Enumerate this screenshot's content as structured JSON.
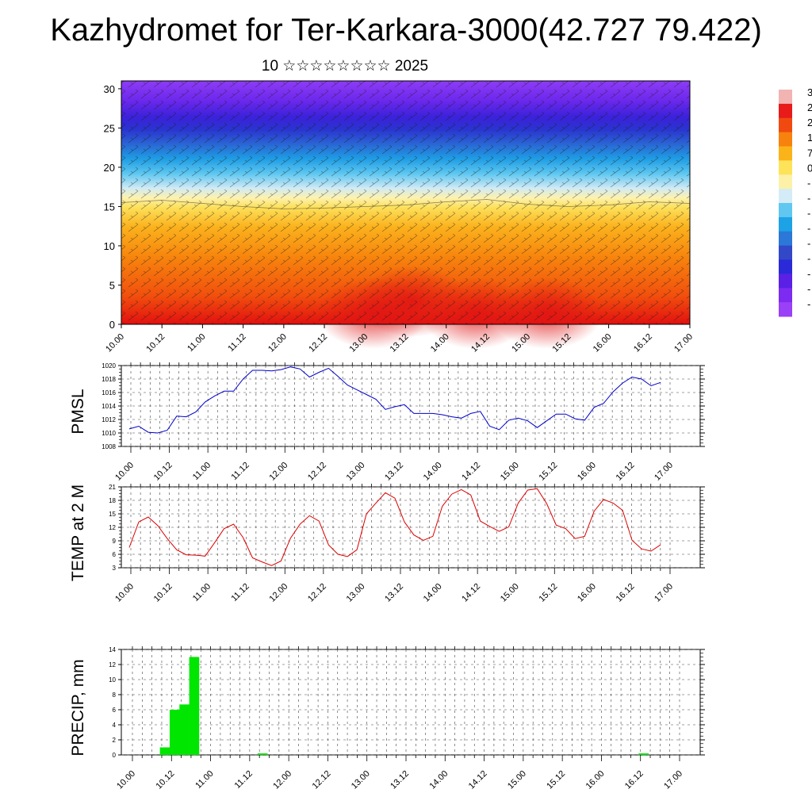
{
  "title": "Kazhydromet for Ter-Karkara-3000(42.727 79.422)",
  "subtitle": "10 ☆☆☆☆☆☆☆☆ 2025",
  "chart_data": [
    {
      "type": "heatmap",
      "name": "vertical-section",
      "x_ticks": [
        "10.00",
        "10.12",
        "11.00",
        "11.12",
        "12.00",
        "12.12",
        "13.00",
        "13.12",
        "14.00",
        "14.12",
        "15.00",
        "15.12",
        "16.00",
        "16.12",
        "17.00"
      ],
      "y_ticks": [
        0,
        5,
        10,
        15,
        20,
        25,
        30
      ],
      "ylim": [
        0,
        31
      ],
      "colorbar_labels": [
        "3",
        "2",
        "2",
        "1",
        "7",
        "0",
        "-",
        "-",
        "-",
        "-",
        "-",
        "-",
        "-",
        "-",
        "-"
      ],
      "colorbar_colors": [
        "#f2b3b3",
        "#e81a1a",
        "#f04a10",
        "#f7820d",
        "#fbb31a",
        "#fde35a",
        "#fdf1a8",
        "#d4ecf7",
        "#60c8f0",
        "#1da2e6",
        "#2b78d8",
        "#3248c8",
        "#2a2ad8",
        "#5a20e6",
        "#7d2bf0",
        "#9a40f7"
      ],
      "surface_profile_km": [
        15.5,
        15.8,
        15.4,
        15.0,
        14.7,
        14.8,
        15.0,
        15.2,
        15.6,
        15.9,
        15.3,
        15.0,
        15.2,
        15.6,
        15.4
      ]
    },
    {
      "type": "line",
      "name": "pmsl",
      "ylabel": "PMSL",
      "color": "#0000cc",
      "ylim": [
        1008,
        1020
      ],
      "y_ticks": [
        1008,
        1010,
        1012,
        1014,
        1016,
        1018,
        1020
      ],
      "x_ticks": [
        "10.00",
        "10.12",
        "11.00",
        "11.12",
        "12.00",
        "12.12",
        "13.00",
        "13.12",
        "14.00",
        "14.12",
        "15.00",
        "15.12",
        "16.00",
        "16.12",
        "17.00"
      ],
      "values": [
        1010.6,
        1011.0,
        1010.1,
        1010.0,
        1010.4,
        1012.5,
        1012.4,
        1013.1,
        1014.6,
        1015.5,
        1016.2,
        1016.2,
        1018.0,
        1019.3,
        1019.3,
        1019.2,
        1019.4,
        1019.8,
        1019.5,
        1018.3,
        1019.0,
        1019.6,
        1018.4,
        1017.1,
        1016.4,
        1015.7,
        1015.0,
        1013.5,
        1013.9,
        1014.2,
        1012.9,
        1012.9,
        1012.9,
        1012.7,
        1012.4,
        1012.2,
        1012.9,
        1013.2,
        1011.0,
        1010.5,
        1011.9,
        1012.2,
        1011.8,
        1010.8,
        1011.8,
        1012.8,
        1012.8,
        1012.1,
        1011.9,
        1013.8,
        1014.4,
        1016.1,
        1017.4,
        1018.3,
        1018.0,
        1017.0,
        1017.5
      ]
    },
    {
      "type": "line",
      "name": "temp",
      "ylabel": "TEMP at 2 M",
      "color": "#dd0000",
      "ylim": [
        3,
        21
      ],
      "y_ticks": [
        3,
        6,
        9,
        12,
        15,
        18,
        21
      ],
      "x_ticks": [
        "10.00",
        "10.12",
        "11.00",
        "11.12",
        "12.00",
        "12.12",
        "13.00",
        "13.12",
        "14.00",
        "14.12",
        "15.00",
        "15.12",
        "16.00",
        "16.12",
        "17.00"
      ],
      "values": [
        7.5,
        13.2,
        14.3,
        12.4,
        9.5,
        7.0,
        5.9,
        5.8,
        5.6,
        8.6,
        11.7,
        12.7,
        9.7,
        5.2,
        4.3,
        3.5,
        4.5,
        9.6,
        12.7,
        14.6,
        13.4,
        8.1,
        6.0,
        5.5,
        7.0,
        15.0,
        17.4,
        19.7,
        18.5,
        13.2,
        10.3,
        9.1,
        10.0,
        16.7,
        19.4,
        20.4,
        19.2,
        13.4,
        12.2,
        11.1,
        12.1,
        17.4,
        20.3,
        20.6,
        17.3,
        12.5,
        11.7,
        9.5,
        10.0,
        15.6,
        18.2,
        17.4,
        15.8,
        9.1,
        7.2,
        6.7,
        8.1
      ]
    },
    {
      "type": "bar",
      "name": "precip",
      "ylabel": "PRECIP, mm",
      "color": "#00e600",
      "ylim": [
        0,
        14
      ],
      "y_ticks": [
        0,
        2,
        4,
        6,
        8,
        10,
        12,
        14
      ],
      "x_ticks": [
        "10.00",
        "10.12",
        "11.00",
        "11.12",
        "12.00",
        "12.12",
        "13.00",
        "13.12",
        "14.00",
        "14.12",
        "15.00",
        "15.12",
        "16.00",
        "16.12",
        "17.00"
      ],
      "values": [
        0,
        0,
        1.0,
        6.0,
        6.7,
        13.0,
        0,
        0,
        0,
        0,
        0,
        0,
        0.2,
        0,
        0,
        0,
        0,
        0,
        0,
        0,
        0,
        0,
        0,
        0,
        0,
        0,
        0,
        0,
        0,
        0,
        0,
        0,
        0,
        0,
        0,
        0,
        0,
        0,
        0,
        0,
        0,
        0,
        0,
        0,
        0,
        0,
        0,
        0,
        0,
        0,
        0,
        0.2,
        0,
        0,
        0,
        0
      ]
    }
  ]
}
